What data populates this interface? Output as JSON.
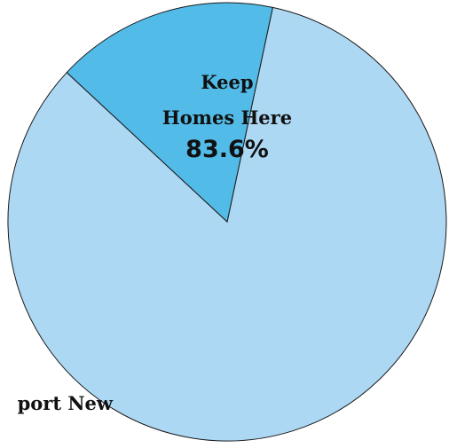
{
  "chart_data": {
    "type": "pie",
    "slices": [
      {
        "label_lines": [
          "Keep",
          "Homes Here"
        ],
        "value": 83.6,
        "value_label": "83.6%",
        "color": "#acd8f3"
      },
      {
        "label_lines": [
          "port New"
        ],
        "value": 16.4,
        "value_label": "",
        "color": "#53bbe8"
      }
    ],
    "start_angle_deg": 12,
    "legend": "none"
  }
}
